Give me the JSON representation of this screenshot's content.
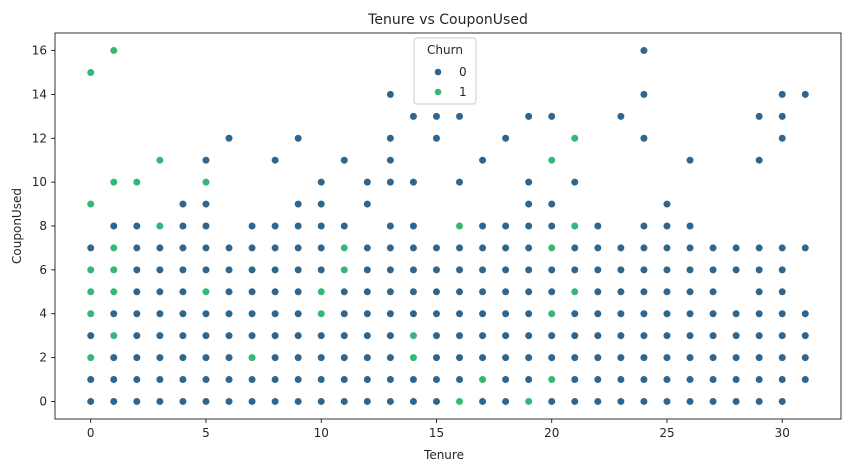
{
  "chart_data": {
    "type": "scatter",
    "title": "Tenure vs CouponUsed",
    "xlabel": "Tenure",
    "ylabel": "CouponUsed",
    "xlim": [
      -1.55,
      32.55
    ],
    "ylim": [
      -0.8,
      16.8
    ],
    "xticks": [
      0,
      5,
      10,
      15,
      20,
      25,
      30
    ],
    "yticks": [
      0,
      2,
      4,
      6,
      8,
      10,
      12,
      14,
      16
    ],
    "legend": {
      "title": "Churn",
      "placement": "top-center",
      "entries": [
        "0",
        "1"
      ]
    },
    "colors": {
      "0": "#30668d",
      "1": "#35b778"
    },
    "series": [
      {
        "name": "0",
        "points": [
          [
            0,
            0
          ],
          [
            0,
            1
          ],
          [
            0,
            2
          ],
          [
            0,
            3
          ],
          [
            0,
            4
          ],
          [
            0,
            5
          ],
          [
            0,
            6
          ],
          [
            0,
            7
          ],
          [
            1,
            0
          ],
          [
            1,
            1
          ],
          [
            1,
            2
          ],
          [
            1,
            3
          ],
          [
            1,
            4
          ],
          [
            1,
            5
          ],
          [
            1,
            6
          ],
          [
            1,
            7
          ],
          [
            1,
            8
          ],
          [
            2,
            0
          ],
          [
            2,
            1
          ],
          [
            2,
            2
          ],
          [
            2,
            3
          ],
          [
            2,
            4
          ],
          [
            2,
            5
          ],
          [
            2,
            6
          ],
          [
            2,
            7
          ],
          [
            2,
            8
          ],
          [
            3,
            0
          ],
          [
            3,
            1
          ],
          [
            3,
            2
          ],
          [
            3,
            3
          ],
          [
            3,
            4
          ],
          [
            3,
            5
          ],
          [
            3,
            6
          ],
          [
            3,
            7
          ],
          [
            4,
            0
          ],
          [
            4,
            1
          ],
          [
            4,
            2
          ],
          [
            4,
            3
          ],
          [
            4,
            4
          ],
          [
            4,
            5
          ],
          [
            4,
            6
          ],
          [
            4,
            7
          ],
          [
            4,
            8
          ],
          [
            4,
            9
          ],
          [
            5,
            0
          ],
          [
            5,
            1
          ],
          [
            5,
            2
          ],
          [
            5,
            3
          ],
          [
            5,
            4
          ],
          [
            5,
            6
          ],
          [
            5,
            7
          ],
          [
            5,
            8
          ],
          [
            5,
            9
          ],
          [
            5,
            11
          ],
          [
            6,
            0
          ],
          [
            6,
            1
          ],
          [
            6,
            2
          ],
          [
            6,
            3
          ],
          [
            6,
            4
          ],
          [
            6,
            5
          ],
          [
            6,
            6
          ],
          [
            6,
            7
          ],
          [
            6,
            12
          ],
          [
            7,
            0
          ],
          [
            7,
            1
          ],
          [
            7,
            3
          ],
          [
            7,
            4
          ],
          [
            7,
            5
          ],
          [
            7,
            6
          ],
          [
            7,
            7
          ],
          [
            7,
            8
          ],
          [
            8,
            0
          ],
          [
            8,
            1
          ],
          [
            8,
            2
          ],
          [
            8,
            3
          ],
          [
            8,
            4
          ],
          [
            8,
            5
          ],
          [
            8,
            6
          ],
          [
            8,
            7
          ],
          [
            8,
            8
          ],
          [
            8,
            11
          ],
          [
            9,
            0
          ],
          [
            9,
            1
          ],
          [
            9,
            2
          ],
          [
            9,
            3
          ],
          [
            9,
            4
          ],
          [
            9,
            5
          ],
          [
            9,
            6
          ],
          [
            9,
            7
          ],
          [
            9,
            8
          ],
          [
            9,
            9
          ],
          [
            9,
            12
          ],
          [
            10,
            0
          ],
          [
            10,
            1
          ],
          [
            10,
            2
          ],
          [
            10,
            3
          ],
          [
            10,
            6
          ],
          [
            10,
            7
          ],
          [
            10,
            8
          ],
          [
            10,
            9
          ],
          [
            10,
            10
          ],
          [
            11,
            0
          ],
          [
            11,
            1
          ],
          [
            11,
            2
          ],
          [
            11,
            3
          ],
          [
            11,
            4
          ],
          [
            11,
            5
          ],
          [
            11,
            8
          ],
          [
            11,
            11
          ],
          [
            12,
            0
          ],
          [
            12,
            1
          ],
          [
            12,
            2
          ],
          [
            12,
            3
          ],
          [
            12,
            4
          ],
          [
            12,
            5
          ],
          [
            12,
            6
          ],
          [
            12,
            7
          ],
          [
            12,
            9
          ],
          [
            12,
            10
          ],
          [
            13,
            0
          ],
          [
            13,
            1
          ],
          [
            13,
            2
          ],
          [
            13,
            3
          ],
          [
            13,
            4
          ],
          [
            13,
            5
          ],
          [
            13,
            6
          ],
          [
            13,
            7
          ],
          [
            13,
            8
          ],
          [
            13,
            10
          ],
          [
            13,
            11
          ],
          [
            13,
            12
          ],
          [
            13,
            14
          ],
          [
            14,
            0
          ],
          [
            14,
            1
          ],
          [
            14,
            4
          ],
          [
            14,
            5
          ],
          [
            14,
            6
          ],
          [
            14,
            7
          ],
          [
            14,
            8
          ],
          [
            14,
            10
          ],
          [
            14,
            13
          ],
          [
            15,
            0
          ],
          [
            15,
            1
          ],
          [
            15,
            2
          ],
          [
            15,
            3
          ],
          [
            15,
            4
          ],
          [
            15,
            5
          ],
          [
            15,
            6
          ],
          [
            15,
            7
          ],
          [
            15,
            12
          ],
          [
            15,
            13
          ],
          [
            16,
            1
          ],
          [
            16,
            2
          ],
          [
            16,
            3
          ],
          [
            16,
            4
          ],
          [
            16,
            5
          ],
          [
            16,
            6
          ],
          [
            16,
            7
          ],
          [
            16,
            10
          ],
          [
            16,
            13
          ],
          [
            17,
            0
          ],
          [
            17,
            2
          ],
          [
            17,
            3
          ],
          [
            17,
            4
          ],
          [
            17,
            5
          ],
          [
            17,
            6
          ],
          [
            17,
            7
          ],
          [
            17,
            8
          ],
          [
            17,
            11
          ],
          [
            18,
            0
          ],
          [
            18,
            1
          ],
          [
            18,
            2
          ],
          [
            18,
            3
          ],
          [
            18,
            4
          ],
          [
            18,
            5
          ],
          [
            18,
            6
          ],
          [
            18,
            7
          ],
          [
            18,
            8
          ],
          [
            18,
            12
          ],
          [
            19,
            1
          ],
          [
            19,
            2
          ],
          [
            19,
            3
          ],
          [
            19,
            4
          ],
          [
            19,
            5
          ],
          [
            19,
            6
          ],
          [
            19,
            7
          ],
          [
            19,
            8
          ],
          [
            19,
            9
          ],
          [
            19,
            10
          ],
          [
            19,
            13
          ],
          [
            20,
            0
          ],
          [
            20,
            2
          ],
          [
            20,
            3
          ],
          [
            20,
            5
          ],
          [
            20,
            6
          ],
          [
            20,
            8
          ],
          [
            20,
            9
          ],
          [
            20,
            13
          ],
          [
            21,
            0
          ],
          [
            21,
            1
          ],
          [
            21,
            2
          ],
          [
            21,
            3
          ],
          [
            21,
            4
          ],
          [
            21,
            6
          ],
          [
            21,
            7
          ],
          [
            21,
            10
          ],
          [
            22,
            0
          ],
          [
            22,
            1
          ],
          [
            22,
            2
          ],
          [
            22,
            3
          ],
          [
            22,
            4
          ],
          [
            22,
            5
          ],
          [
            22,
            6
          ],
          [
            22,
            7
          ],
          [
            22,
            8
          ],
          [
            23,
            0
          ],
          [
            23,
            1
          ],
          [
            23,
            2
          ],
          [
            23,
            3
          ],
          [
            23,
            4
          ],
          [
            23,
            5
          ],
          [
            23,
            6
          ],
          [
            23,
            7
          ],
          [
            23,
            13
          ],
          [
            24,
            0
          ],
          [
            24,
            1
          ],
          [
            24,
            2
          ],
          [
            24,
            3
          ],
          [
            24,
            4
          ],
          [
            24,
            5
          ],
          [
            24,
            6
          ],
          [
            24,
            7
          ],
          [
            24,
            8
          ],
          [
            24,
            12
          ],
          [
            24,
            14
          ],
          [
            24,
            16
          ],
          [
            25,
            0
          ],
          [
            25,
            1
          ],
          [
            25,
            2
          ],
          [
            25,
            3
          ],
          [
            25,
            4
          ],
          [
            25,
            5
          ],
          [
            25,
            6
          ],
          [
            25,
            7
          ],
          [
            25,
            8
          ],
          [
            25,
            9
          ],
          [
            26,
            0
          ],
          [
            26,
            1
          ],
          [
            26,
            2
          ],
          [
            26,
            3
          ],
          [
            26,
            4
          ],
          [
            26,
            5
          ],
          [
            26,
            6
          ],
          [
            26,
            7
          ],
          [
            26,
            8
          ],
          [
            26,
            11
          ],
          [
            27,
            0
          ],
          [
            27,
            1
          ],
          [
            27,
            2
          ],
          [
            27,
            3
          ],
          [
            27,
            4
          ],
          [
            27,
            5
          ],
          [
            27,
            6
          ],
          [
            27,
            7
          ],
          [
            28,
            0
          ],
          [
            28,
            1
          ],
          [
            28,
            2
          ],
          [
            28,
            3
          ],
          [
            28,
            4
          ],
          [
            28,
            6
          ],
          [
            28,
            7
          ],
          [
            29,
            0
          ],
          [
            29,
            1
          ],
          [
            29,
            2
          ],
          [
            29,
            3
          ],
          [
            29,
            4
          ],
          [
            29,
            5
          ],
          [
            29,
            6
          ],
          [
            29,
            7
          ],
          [
            29,
            11
          ],
          [
            29,
            13
          ],
          [
            30,
            0
          ],
          [
            30,
            1
          ],
          [
            30,
            2
          ],
          [
            30,
            3
          ],
          [
            30,
            4
          ],
          [
            30,
            5
          ],
          [
            30,
            6
          ],
          [
            30,
            7
          ],
          [
            30,
            12
          ],
          [
            30,
            13
          ],
          [
            30,
            14
          ],
          [
            31,
            1
          ],
          [
            31,
            2
          ],
          [
            31,
            3
          ],
          [
            31,
            4
          ],
          [
            31,
            7
          ],
          [
            31,
            14
          ]
        ]
      },
      {
        "name": "1",
        "points": [
          [
            0,
            2
          ],
          [
            0,
            4
          ],
          [
            0,
            5
          ],
          [
            0,
            6
          ],
          [
            0,
            9
          ],
          [
            0,
            15
          ],
          [
            1,
            3
          ],
          [
            1,
            5
          ],
          [
            1,
            6
          ],
          [
            1,
            7
          ],
          [
            1,
            10
          ],
          [
            1,
            16
          ],
          [
            2,
            10
          ],
          [
            3,
            8
          ],
          [
            3,
            11
          ],
          [
            5,
            5
          ],
          [
            5,
            10
          ],
          [
            7,
            2
          ],
          [
            10,
            4
          ],
          [
            10,
            5
          ],
          [
            11,
            6
          ],
          [
            11,
            7
          ],
          [
            14,
            2
          ],
          [
            14,
            3
          ],
          [
            16,
            0
          ],
          [
            16,
            8
          ],
          [
            17,
            1
          ],
          [
            19,
            0
          ],
          [
            20,
            1
          ],
          [
            20,
            4
          ],
          [
            20,
            7
          ],
          [
            20,
            11
          ],
          [
            21,
            5
          ],
          [
            21,
            8
          ],
          [
            21,
            12
          ]
        ]
      }
    ]
  }
}
